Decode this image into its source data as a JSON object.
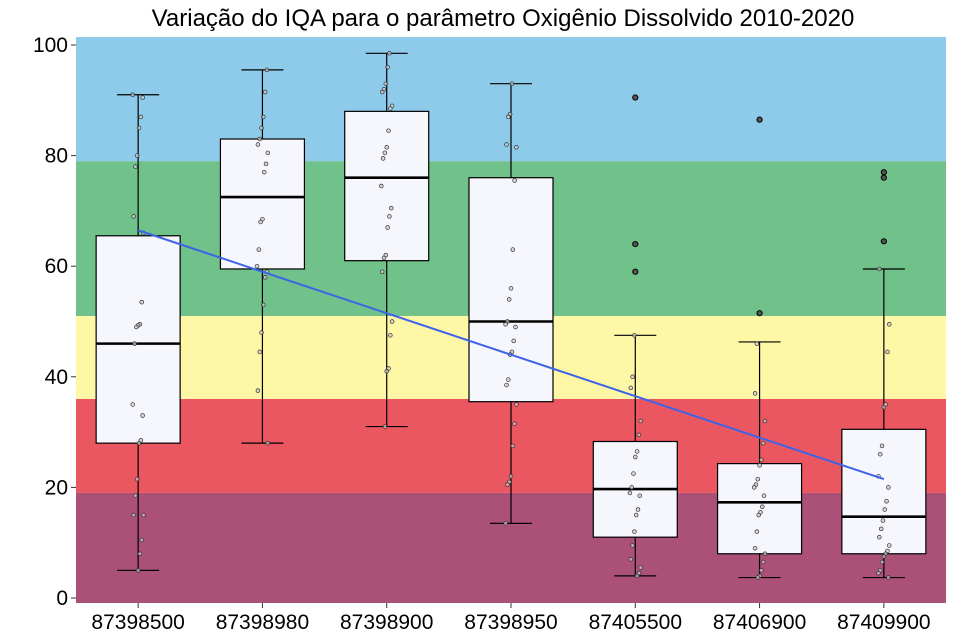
{
  "chart_data": {
    "type": "box",
    "title": "Variação do IQA para o parâmetro Oxigênio Dissolvido 2010-2020",
    "xlabel": "",
    "ylabel": "",
    "ylim": [
      0,
      100
    ],
    "y_ticks": [
      0,
      20,
      40,
      60,
      80,
      100
    ],
    "y_tick_labels": [
      "0",
      "20",
      "40",
      "60",
      "80",
      "100"
    ],
    "grid": false,
    "legend": "none",
    "categories": [
      "87398500",
      "87398980",
      "87398900",
      "87398950",
      "87405500",
      "87406900",
      "87409900"
    ],
    "background_bands": [
      {
        "from": 0,
        "to": 19,
        "color": "#ab5076"
      },
      {
        "from": 19,
        "to": 36,
        "color": "#ea5760"
      },
      {
        "from": 36,
        "to": 51,
        "color": "#fdf7a6"
      },
      {
        "from": 51,
        "to": 79,
        "color": "#71c18b"
      },
      {
        "from": 79,
        "to": 100,
        "color": "#8ecbea"
      }
    ],
    "boxes": [
      {
        "category": "87398500",
        "whisker_low": 5,
        "q1": 28,
        "median": 46,
        "q3": 65.5,
        "whisker_high": 91,
        "outliers": []
      },
      {
        "category": "87398980",
        "whisker_low": 28,
        "q1": 59.5,
        "median": 72.5,
        "q3": 83,
        "whisker_high": 95.5,
        "outliers": []
      },
      {
        "category": "87398900",
        "whisker_low": 31,
        "q1": 61,
        "median": 76,
        "q3": 88,
        "whisker_high": 98.5,
        "outliers": []
      },
      {
        "category": "87398950",
        "whisker_low": 13.5,
        "q1": 35.5,
        "median": 50,
        "q3": 76,
        "whisker_high": 93,
        "outliers": []
      },
      {
        "category": "87405500",
        "whisker_low": 4,
        "q1": 11,
        "median": 19.7,
        "q3": 28.3,
        "whisker_high": 47.5,
        "outliers": [
          59,
          64,
          90.5
        ]
      },
      {
        "category": "87406900",
        "whisker_low": 3.7,
        "q1": 8,
        "median": 17.3,
        "q3": 24.3,
        "whisker_high": 46.3,
        "outliers": [
          51.5,
          86.5
        ]
      },
      {
        "category": "87409900",
        "whisker_low": 3.7,
        "q1": 8,
        "median": 14.7,
        "q3": 30.5,
        "whisker_high": 59.5,
        "outliers": [
          64.5,
          76,
          77
        ]
      }
    ],
    "points": [
      {
        "category": "87398500",
        "values": [
          91,
          90.5,
          87,
          85,
          80,
          78,
          69,
          66,
          53.5,
          49.5,
          49.3,
          49,
          46,
          35,
          33,
          28.5,
          28,
          21.5,
          18.5,
          15,
          15,
          10.5,
          8,
          5
        ]
      },
      {
        "category": "87398980",
        "values": [
          95.5,
          91.5,
          87,
          85,
          83,
          82,
          80.5,
          78.5,
          77,
          68.5,
          68,
          63,
          60,
          59,
          58,
          53,
          48,
          44.5,
          37.5,
          28
        ]
      },
      {
        "category": "87398900",
        "values": [
          98.5,
          96,
          93,
          92,
          91.5,
          89,
          88.5,
          84.5,
          81.5,
          80.5,
          79.5,
          74.5,
          70.5,
          69,
          67,
          62,
          61.5,
          59,
          50,
          47.5,
          41.5,
          41,
          31
        ]
      },
      {
        "category": "87398950",
        "values": [
          93,
          87.5,
          87,
          82,
          81.5,
          75.5,
          63,
          56,
          54,
          50,
          49.5,
          49,
          46.5,
          44.5,
          44,
          39.5,
          38.5,
          35,
          31.5,
          27.5,
          22,
          21,
          20.5,
          13.5
        ]
      },
      {
        "category": "87405500",
        "values": [
          47.5,
          40,
          38,
          32,
          29.5,
          26.5,
          25.5,
          22.5,
          20,
          19,
          18.5,
          16,
          15,
          12,
          9.5,
          7,
          5.5,
          4.5,
          4
        ]
      },
      {
        "category": "87406900",
        "values": [
          46,
          37,
          32,
          28,
          25,
          24,
          21.5,
          20.5,
          20,
          18.5,
          16.5,
          15.5,
          15,
          12,
          9,
          8,
          6.5,
          5,
          4,
          3.7
        ]
      },
      {
        "category": "87409900",
        "values": [
          59.5,
          49.5,
          44.5,
          35,
          34.5,
          27.5,
          26,
          22,
          20,
          17.5,
          16,
          14,
          12.5,
          11,
          9.5,
          8.5,
          8,
          7.5,
          6.5,
          5,
          4.5,
          3.7
        ]
      }
    ],
    "trend_line": {
      "color": "#3d63e8",
      "values": [
        66.5,
        21.5
      ]
    },
    "colors": {
      "box_fill": "#f6f6fd",
      "box_stroke": "#000000",
      "point_fill": "#cccccc",
      "outlier_stroke": "#000000"
    }
  }
}
